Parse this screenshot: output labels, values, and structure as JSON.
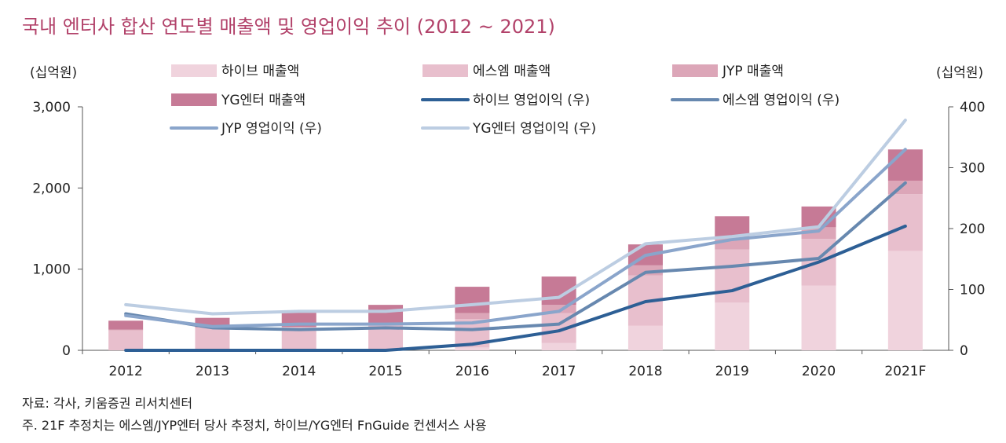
{
  "title": "국내 엔터사 합산 연도별 매출액 및 영업이익 추이 (2012 ~ 2021)",
  "source": "자료: 각사, 키움증권 리서치센터",
  "footnote": "주. 21F 추정치는 에스엠/JYP엔터 당사 추정치, 하이브/YG엔터 FnGuide 컨센서스 사용",
  "colors": {
    "hybe_sales": "#f0d3dd",
    "sm_sales": "#e8bfcd",
    "jyp_sales": "#dca6b8",
    "yg_sales": "#c67a96",
    "hybe_op": "#2d5f95",
    "sm_op": "#6788af",
    "jyp_op": "#8aa5cb",
    "yg_op": "#bccde2"
  },
  "chart_data": {
    "type": "bar",
    "title": "국내 엔터사 합산 연도별 매출액 및 영업이익 추이 (2012 ~ 2021)",
    "categories": [
      "2012",
      "2013",
      "2014",
      "2015",
      "2016",
      "2017",
      "2018",
      "2019",
      "2020",
      "2021F"
    ],
    "left_axis": {
      "label": "(십억원)",
      "ylim": [
        0,
        3000
      ],
      "ticks": [
        "0",
        "1,000",
        "2,000",
        "3,000"
      ],
      "tick_values": [
        0,
        1000,
        2000,
        3000
      ]
    },
    "right_axis": {
      "label": "(십억원)",
      "ylim": [
        0,
        400
      ],
      "ticks": [
        "0",
        "100",
        "200",
        "300",
        "400"
      ],
      "tick_values": [
        0,
        100,
        200,
        300,
        400
      ]
    },
    "bar_series": [
      {
        "name": "하이브 매출액",
        "axis": "left",
        "stacked": true,
        "values": [
          0,
          0,
          0,
          0,
          35,
          92,
          302,
          587,
          796,
          1225
        ]
      },
      {
        "name": "에스엠 매출액",
        "axis": "left",
        "stacked": true,
        "values": [
          245,
          285,
          290,
          325,
          350,
          365,
          620,
          655,
          576,
          700
        ]
      },
      {
        "name": "JYP 매출액",
        "axis": "left",
        "stacked": true,
        "values": [
          10,
          0,
          0,
          0,
          73,
          102,
          125,
          155,
          144,
          165
        ]
      },
      {
        "name": "YG엔터 매출액",
        "axis": "left",
        "stacked": true,
        "values": [
          110,
          115,
          175,
          235,
          325,
          350,
          258,
          255,
          256,
          385
        ]
      }
    ],
    "line_series": [
      {
        "name": "하이브 영업이익 (우)",
        "axis": "right",
        "values": [
          0,
          0,
          0,
          0,
          10,
          32,
          80,
          98,
          145,
          204
        ]
      },
      {
        "name": "에스엠 영업이익 (우)",
        "axis": "right",
        "values": [
          60,
          37,
          34,
          37,
          34,
          43,
          128,
          138,
          151,
          275
        ]
      },
      {
        "name": "JYP 영업이익 (우)",
        "axis": "right",
        "values": [
          57,
          39,
          43,
          43,
          45,
          64,
          156,
          182,
          196,
          330
        ]
      },
      {
        "name": "YG엔터 영업이익 (우)",
        "axis": "right",
        "values": [
          75,
          60,
          64,
          64,
          75,
          87,
          175,
          187,
          203,
          378
        ]
      }
    ],
    "legend_placement": "top",
    "grid": false
  }
}
